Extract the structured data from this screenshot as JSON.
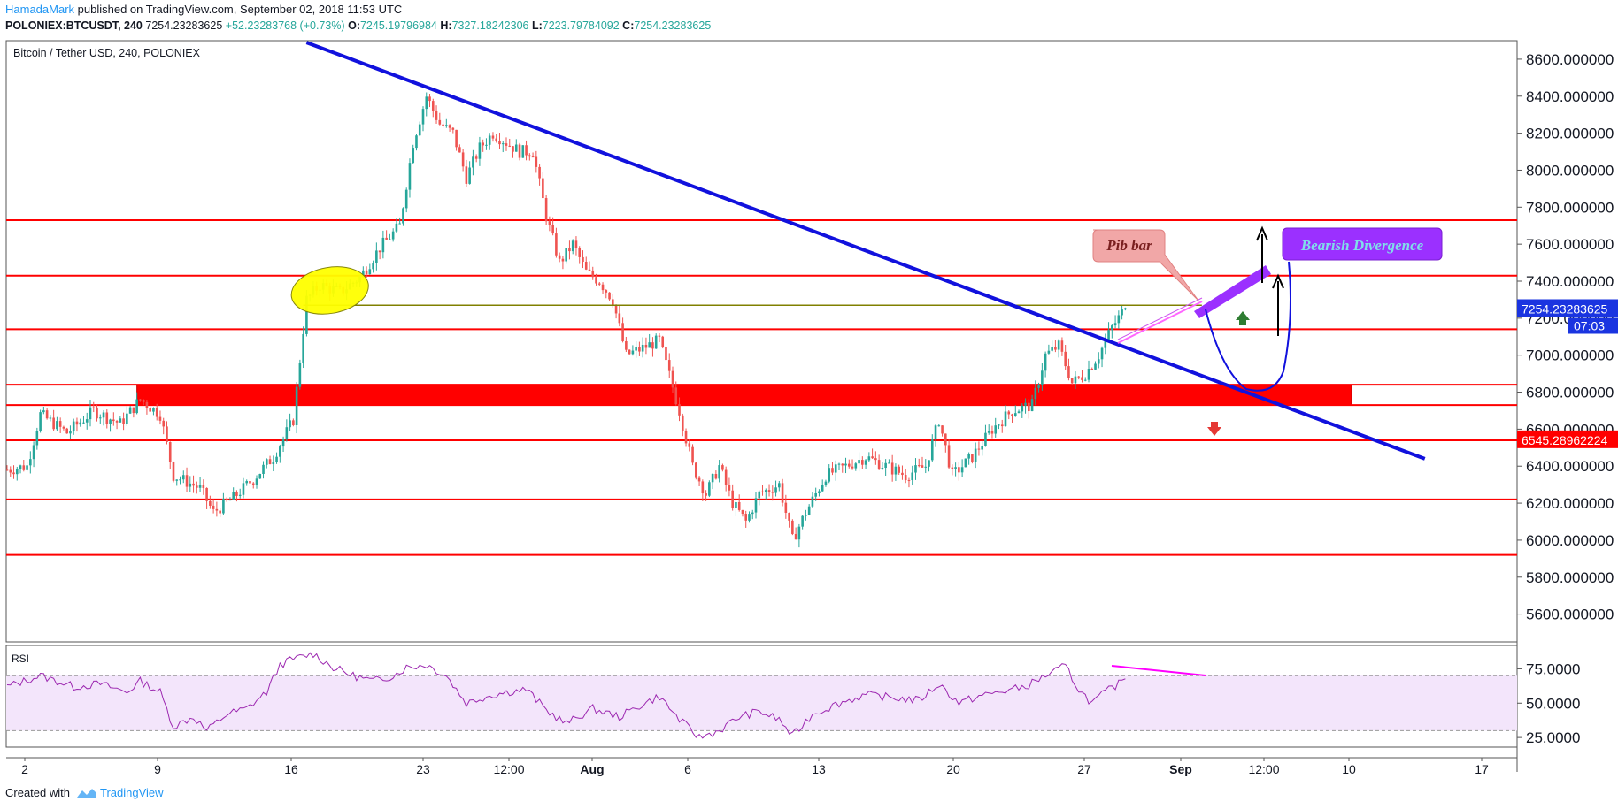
{
  "header": {
    "author": "HamadaMark",
    "published_text": "published on TradingView.com, September 02, 2018 11:53 UTC",
    "symbol": "POLONIEX:BTCUSDT, 240",
    "last": "7254.23283625",
    "change": "+52.23283768 (+0.73%)",
    "open_label": "O:",
    "open": "7245.19796984",
    "high_label": "H:",
    "high": "7327.18242306",
    "low_label": "L:",
    "low": "7223.79784092",
    "close_label": "C:",
    "close": "7254.23283625"
  },
  "footer": {
    "created_with": "Created with",
    "brand": "TradingView"
  },
  "colors": {
    "up": "#26a69a",
    "down": "#ef5350",
    "trendline": "#1111dd",
    "level": "#ff0000",
    "rsi_line": "#9c27b0",
    "rsi_band": "#f3e5fb",
    "highlight": "#ffff00",
    "hline": "#808000"
  },
  "chart_data": [
    {
      "type": "candlestick",
      "title": "Bitcoin / Tether USD, 240, POLONIEX",
      "ylim": [
        5450,
        8700
      ],
      "y_ticks": [
        "8600.000000",
        "8400.000000",
        "8200.000000",
        "8000.000000",
        "7800.000000",
        "7600.000000",
        "7400.000000",
        "7200.000000",
        "7000.000000",
        "6800.000000",
        "6600.000000",
        "6400.000000",
        "6200.000000",
        "6000.000000",
        "5800.000000",
        "5600.000000"
      ],
      "x_ticks": [
        "2",
        "9",
        "16",
        "23",
        "12:00",
        "Aug",
        "6",
        "13",
        "20",
        "27",
        "Sep",
        "12:00",
        "10",
        "17"
      ],
      "price_anchors": [
        {
          "bar": 0,
          "price": 6380
        },
        {
          "bar": 6,
          "price": 6400
        },
        {
          "bar": 10,
          "price": 6680
        },
        {
          "bar": 18,
          "price": 6580
        },
        {
          "bar": 26,
          "price": 6700
        },
        {
          "bar": 34,
          "price": 6630
        },
        {
          "bar": 40,
          "price": 6760
        },
        {
          "bar": 46,
          "price": 6680
        },
        {
          "bar": 50,
          "price": 6350
        },
        {
          "bar": 58,
          "price": 6280
        },
        {
          "bar": 62,
          "price": 6150
        },
        {
          "bar": 68,
          "price": 6230
        },
        {
          "bar": 74,
          "price": 6330
        },
        {
          "bar": 80,
          "price": 6450
        },
        {
          "bar": 86,
          "price": 6650
        },
        {
          "bar": 90,
          "price": 7300
        },
        {
          "bar": 94,
          "price": 7380
        },
        {
          "bar": 100,
          "price": 7340
        },
        {
          "bar": 106,
          "price": 7420
        },
        {
          "bar": 112,
          "price": 7580
        },
        {
          "bar": 118,
          "price": 7700
        },
        {
          "bar": 122,
          "price": 8150
        },
        {
          "bar": 126,
          "price": 8400
        },
        {
          "bar": 130,
          "price": 8250
        },
        {
          "bar": 134,
          "price": 8200
        },
        {
          "bar": 138,
          "price": 7960
        },
        {
          "bar": 142,
          "price": 8120
        },
        {
          "bar": 146,
          "price": 8200
        },
        {
          "bar": 150,
          "price": 8150
        },
        {
          "bar": 154,
          "price": 8100
        },
        {
          "bar": 158,
          "price": 8100
        },
        {
          "bar": 162,
          "price": 7750
        },
        {
          "bar": 166,
          "price": 7500
        },
        {
          "bar": 170,
          "price": 7600
        },
        {
          "bar": 174,
          "price": 7450
        },
        {
          "bar": 178,
          "price": 7400
        },
        {
          "bar": 182,
          "price": 7300
        },
        {
          "bar": 186,
          "price": 7000
        },
        {
          "bar": 190,
          "price": 7030
        },
        {
          "bar": 196,
          "price": 7080
        },
        {
          "bar": 202,
          "price": 6700
        },
        {
          "bar": 206,
          "price": 6400
        },
        {
          "bar": 210,
          "price": 6250
        },
        {
          "bar": 214,
          "price": 6400
        },
        {
          "bar": 218,
          "price": 6200
        },
        {
          "bar": 222,
          "price": 6100
        },
        {
          "bar": 226,
          "price": 6250
        },
        {
          "bar": 232,
          "price": 6300
        },
        {
          "bar": 236,
          "price": 6000
        },
        {
          "bar": 240,
          "price": 6150
        },
        {
          "bar": 246,
          "price": 6350
        },
        {
          "bar": 252,
          "price": 6400
        },
        {
          "bar": 258,
          "price": 6450
        },
        {
          "bar": 264,
          "price": 6400
        },
        {
          "bar": 270,
          "price": 6350
        },
        {
          "bar": 276,
          "price": 6400
        },
        {
          "bar": 280,
          "price": 6650
        },
        {
          "bar": 284,
          "price": 6350
        },
        {
          "bar": 290,
          "price": 6450
        },
        {
          "bar": 296,
          "price": 6600
        },
        {
          "bar": 302,
          "price": 6700
        },
        {
          "bar": 308,
          "price": 6730
        },
        {
          "bar": 312,
          "price": 7000
        },
        {
          "bar": 316,
          "price": 7050
        },
        {
          "bar": 320,
          "price": 6850
        },
        {
          "bar": 324,
          "price": 6900
        },
        {
          "bar": 328,
          "price": 7000
        },
        {
          "bar": 332,
          "price": 7150
        },
        {
          "bar": 336,
          "price": 7254
        }
      ],
      "horizontal_levels": [
        7730,
        7430,
        7140,
        6840,
        6730,
        6540,
        6220,
        5920
      ],
      "zone": {
        "from_bar": 39,
        "to_bar": 404,
        "low": 6730,
        "high": 6840
      },
      "resistance_line": {
        "from_bar": 89,
        "to_bar": 359,
        "price": 7270
      },
      "trendline": {
        "from_bar": 90,
        "from_price": 8690,
        "to_bar": 426,
        "to_price": 6440
      },
      "highlight_ellipse": {
        "bar": 97,
        "price": 7350
      },
      "annotations": {
        "pib_bar": "Pib bar",
        "bearish_divergence": "Bearish Divergence"
      },
      "price_labels": {
        "last": "7254.23283625",
        "countdown": "07:03",
        "level": "6545.28962224"
      }
    },
    {
      "type": "line",
      "title": "RSI",
      "ylim": [
        18,
        92
      ],
      "y_ticks": [
        "75.0000",
        "50.0000",
        "25.0000"
      ],
      "band": [
        30,
        70
      ],
      "anchors": [
        {
          "bar": 0,
          "value": 62
        },
        {
          "bar": 10,
          "value": 70
        },
        {
          "bar": 20,
          "value": 62
        },
        {
          "bar": 28,
          "value": 64
        },
        {
          "bar": 36,
          "value": 58
        },
        {
          "bar": 40,
          "value": 66
        },
        {
          "bar": 46,
          "value": 58
        },
        {
          "bar": 50,
          "value": 33
        },
        {
          "bar": 56,
          "value": 40
        },
        {
          "bar": 60,
          "value": 30
        },
        {
          "bar": 66,
          "value": 42
        },
        {
          "bar": 72,
          "value": 46
        },
        {
          "bar": 78,
          "value": 58
        },
        {
          "bar": 82,
          "value": 78
        },
        {
          "bar": 86,
          "value": 82
        },
        {
          "bar": 92,
          "value": 86
        },
        {
          "bar": 98,
          "value": 76
        },
        {
          "bar": 104,
          "value": 70
        },
        {
          "bar": 110,
          "value": 66
        },
        {
          "bar": 116,
          "value": 70
        },
        {
          "bar": 120,
          "value": 76
        },
        {
          "bar": 126,
          "value": 78
        },
        {
          "bar": 132,
          "value": 70
        },
        {
          "bar": 138,
          "value": 50
        },
        {
          "bar": 144,
          "value": 55
        },
        {
          "bar": 150,
          "value": 58
        },
        {
          "bar": 156,
          "value": 60
        },
        {
          "bar": 162,
          "value": 45
        },
        {
          "bar": 168,
          "value": 35
        },
        {
          "bar": 176,
          "value": 46
        },
        {
          "bar": 184,
          "value": 40
        },
        {
          "bar": 190,
          "value": 48
        },
        {
          "bar": 196,
          "value": 55
        },
        {
          "bar": 202,
          "value": 38
        },
        {
          "bar": 208,
          "value": 25
        },
        {
          "bar": 214,
          "value": 30
        },
        {
          "bar": 220,
          "value": 40
        },
        {
          "bar": 226,
          "value": 44
        },
        {
          "bar": 232,
          "value": 38
        },
        {
          "bar": 236,
          "value": 26
        },
        {
          "bar": 242,
          "value": 42
        },
        {
          "bar": 250,
          "value": 50
        },
        {
          "bar": 258,
          "value": 56
        },
        {
          "bar": 266,
          "value": 54
        },
        {
          "bar": 274,
          "value": 52
        },
        {
          "bar": 280,
          "value": 64
        },
        {
          "bar": 286,
          "value": 50
        },
        {
          "bar": 292,
          "value": 55
        },
        {
          "bar": 298,
          "value": 58
        },
        {
          "bar": 306,
          "value": 62
        },
        {
          "bar": 312,
          "value": 70
        },
        {
          "bar": 318,
          "value": 77
        },
        {
          "bar": 322,
          "value": 60
        },
        {
          "bar": 326,
          "value": 50
        },
        {
          "bar": 330,
          "value": 58
        },
        {
          "bar": 334,
          "value": 64
        },
        {
          "bar": 336,
          "value": 70
        }
      ]
    }
  ]
}
